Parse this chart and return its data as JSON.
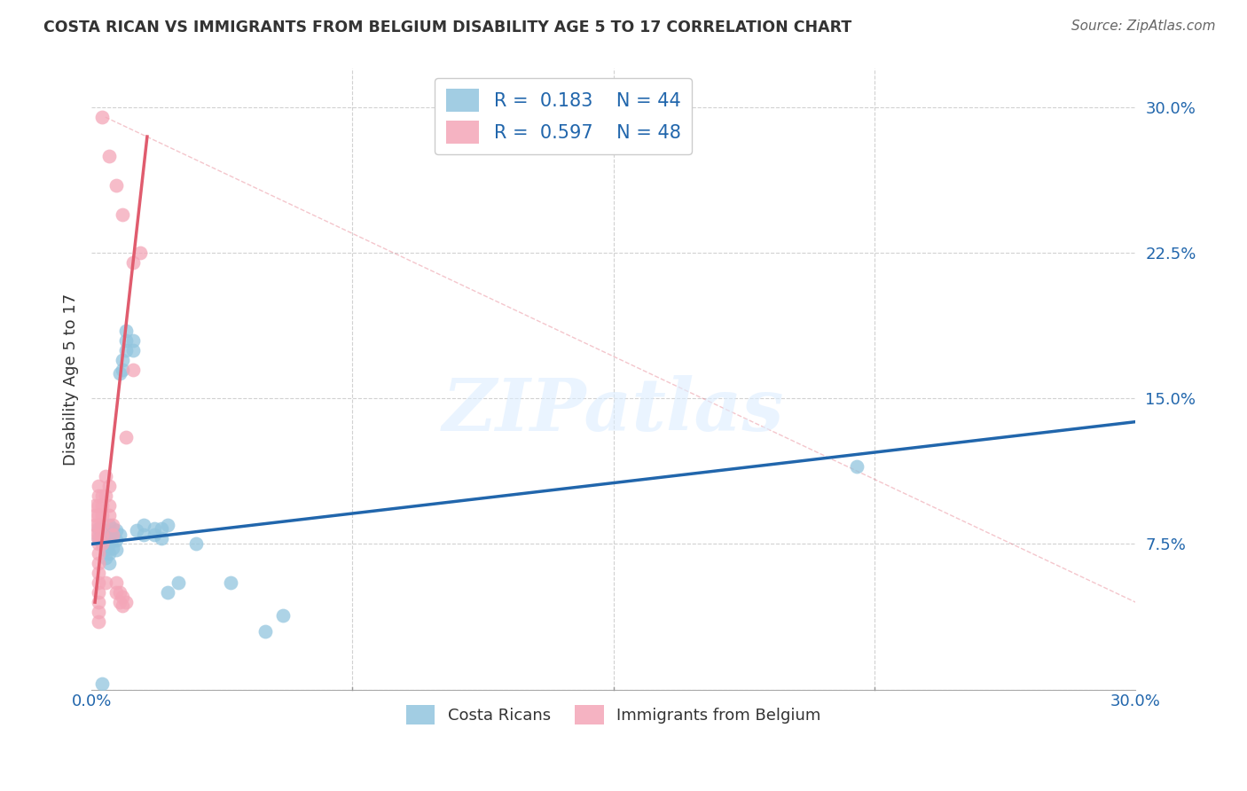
{
  "title": "COSTA RICAN VS IMMIGRANTS FROM BELGIUM DISABILITY AGE 5 TO 17 CORRELATION CHART",
  "source": "Source: ZipAtlas.com",
  "ylabel": "Disability Age 5 to 17",
  "xlim": [
    0.0,
    0.3
  ],
  "ylim": [
    0.0,
    0.32
  ],
  "watermark": "ZIPatlas",
  "legend_R1": "R =  0.183",
  "legend_N1": "N = 44",
  "legend_R2": "R =  0.597",
  "legend_N2": "N = 48",
  "blue_color": "#92c5de",
  "pink_color": "#f4a6b8",
  "line_blue": "#2166ac",
  "line_pink": "#e05c6e",
  "blue_scatter": [
    [
      0.002,
      0.083
    ],
    [
      0.002,
      0.078
    ],
    [
      0.003,
      0.08
    ],
    [
      0.003,
      0.075
    ],
    [
      0.004,
      0.082
    ],
    [
      0.004,
      0.077
    ],
    [
      0.004,
      0.072
    ],
    [
      0.004,
      0.068
    ],
    [
      0.005,
      0.085
    ],
    [
      0.005,
      0.08
    ],
    [
      0.005,
      0.075
    ],
    [
      0.005,
      0.07
    ],
    [
      0.005,
      0.065
    ],
    [
      0.006,
      0.083
    ],
    [
      0.006,
      0.078
    ],
    [
      0.006,
      0.073
    ],
    [
      0.007,
      0.082
    ],
    [
      0.007,
      0.077
    ],
    [
      0.007,
      0.072
    ],
    [
      0.008,
      0.163
    ],
    [
      0.008,
      0.08
    ],
    [
      0.009,
      0.17
    ],
    [
      0.009,
      0.165
    ],
    [
      0.01,
      0.185
    ],
    [
      0.01,
      0.18
    ],
    [
      0.01,
      0.175
    ],
    [
      0.012,
      0.18
    ],
    [
      0.012,
      0.175
    ],
    [
      0.013,
      0.082
    ],
    [
      0.015,
      0.085
    ],
    [
      0.015,
      0.08
    ],
    [
      0.018,
      0.083
    ],
    [
      0.018,
      0.08
    ],
    [
      0.02,
      0.083
    ],
    [
      0.02,
      0.078
    ],
    [
      0.022,
      0.085
    ],
    [
      0.022,
      0.05
    ],
    [
      0.025,
      0.055
    ],
    [
      0.03,
      0.075
    ],
    [
      0.04,
      0.055
    ],
    [
      0.05,
      0.03
    ],
    [
      0.055,
      0.038
    ],
    [
      0.22,
      0.115
    ],
    [
      0.003,
      0.003
    ]
  ],
  "pink_scatter": [
    [
      0.001,
      0.095
    ],
    [
      0.001,
      0.09
    ],
    [
      0.001,
      0.085
    ],
    [
      0.001,
      0.08
    ],
    [
      0.002,
      0.105
    ],
    [
      0.002,
      0.1
    ],
    [
      0.002,
      0.095
    ],
    [
      0.002,
      0.09
    ],
    [
      0.002,
      0.085
    ],
    [
      0.002,
      0.08
    ],
    [
      0.002,
      0.075
    ],
    [
      0.002,
      0.07
    ],
    [
      0.002,
      0.065
    ],
    [
      0.002,
      0.06
    ],
    [
      0.002,
      0.055
    ],
    [
      0.002,
      0.05
    ],
    [
      0.002,
      0.045
    ],
    [
      0.002,
      0.04
    ],
    [
      0.002,
      0.035
    ],
    [
      0.003,
      0.1
    ],
    [
      0.003,
      0.095
    ],
    [
      0.003,
      0.09
    ],
    [
      0.003,
      0.085
    ],
    [
      0.003,
      0.08
    ],
    [
      0.003,
      0.075
    ],
    [
      0.004,
      0.11
    ],
    [
      0.004,
      0.1
    ],
    [
      0.004,
      0.055
    ],
    [
      0.005,
      0.105
    ],
    [
      0.005,
      0.095
    ],
    [
      0.005,
      0.09
    ],
    [
      0.006,
      0.085
    ],
    [
      0.006,
      0.08
    ],
    [
      0.007,
      0.055
    ],
    [
      0.007,
      0.05
    ],
    [
      0.008,
      0.05
    ],
    [
      0.008,
      0.045
    ],
    [
      0.009,
      0.048
    ],
    [
      0.009,
      0.043
    ],
    [
      0.01,
      0.045
    ],
    [
      0.01,
      0.13
    ],
    [
      0.012,
      0.165
    ],
    [
      0.014,
      0.225
    ],
    [
      0.003,
      0.295
    ],
    [
      0.005,
      0.275
    ],
    [
      0.007,
      0.26
    ],
    [
      0.009,
      0.245
    ],
    [
      0.012,
      0.22
    ]
  ],
  "blue_line_x": [
    0.0,
    0.3
  ],
  "blue_line_y": [
    0.075,
    0.138
  ],
  "pink_line_x": [
    0.001,
    0.016
  ],
  "pink_line_y": [
    0.045,
    0.285
  ],
  "dashed_line_x": [
    0.004,
    0.3
  ],
  "dashed_line_y": [
    0.295,
    0.045
  ],
  "background_color": "#ffffff",
  "grid_color": "#cccccc",
  "ytick_positions": [
    0.0,
    0.075,
    0.15,
    0.225,
    0.3
  ],
  "ytick_labels": [
    "",
    "7.5%",
    "15.0%",
    "22.5%",
    "30.0%"
  ],
  "xtick_label_left": "0.0%",
  "xtick_label_right": "30.0%",
  "xtick_minor": [
    0.075,
    0.15,
    0.225
  ]
}
